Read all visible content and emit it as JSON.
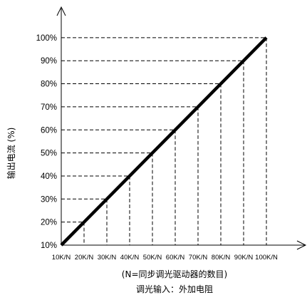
{
  "chart_data": {
    "type": "line",
    "x": [
      "10K/N",
      "20K/N",
      "30K/N",
      "40K/N",
      "50K/N",
      "60K/N",
      "70K/N",
      "80K/N",
      "90K/N",
      "100K/N"
    ],
    "y_ticks": [
      "10%",
      "20%",
      "30%",
      "40%",
      "50%",
      "60%",
      "70%",
      "80%",
      "90%",
      "100%"
    ],
    "series": [
      {
        "values": [
          10,
          20,
          30,
          40,
          50,
          60,
          70,
          80,
          90,
          100
        ]
      }
    ],
    "ylabel": "输出电流 (%)",
    "xlabel_line1": "(N=同步调光驱动器的数目)",
    "xlabel_line2": "调光输入：外加电阻",
    "ylim": [
      10,
      100
    ],
    "grid": "dashed guide lines from each data point to both axes",
    "colors": {
      "line": "#000000",
      "guides": "#000000"
    }
  }
}
